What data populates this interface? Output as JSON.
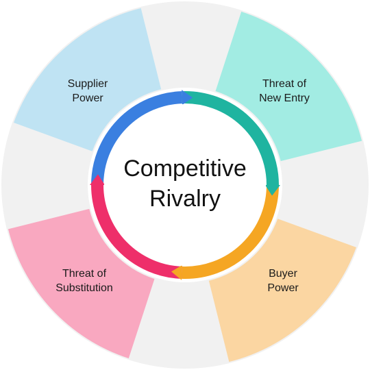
{
  "center": {
    "line1": "Competitive",
    "line2": "Rivalry"
  },
  "segments": [
    {
      "key": "supplier",
      "line1": "Supplier",
      "line2": "Power",
      "color": "#bfe3f3"
    },
    {
      "key": "new_entry",
      "line1": "Threat of",
      "line2": "New Entry",
      "color": "#a2ece3"
    },
    {
      "key": "buyer",
      "line1": "Buyer",
      "line2": "Power",
      "color": "#fbd6a2"
    },
    {
      "key": "substitution",
      "line1": "Threat of",
      "line2": "Substitution",
      "color": "#f9a8c0"
    }
  ],
  "ring_colors": {
    "blue": "#3a7fe0",
    "teal": "#1fb4a0",
    "orange": "#f5a623",
    "pink": "#ee2f6a"
  },
  "colors": {
    "gap_gray": "#f1f1f1",
    "center_fill": "#ffffff"
  }
}
